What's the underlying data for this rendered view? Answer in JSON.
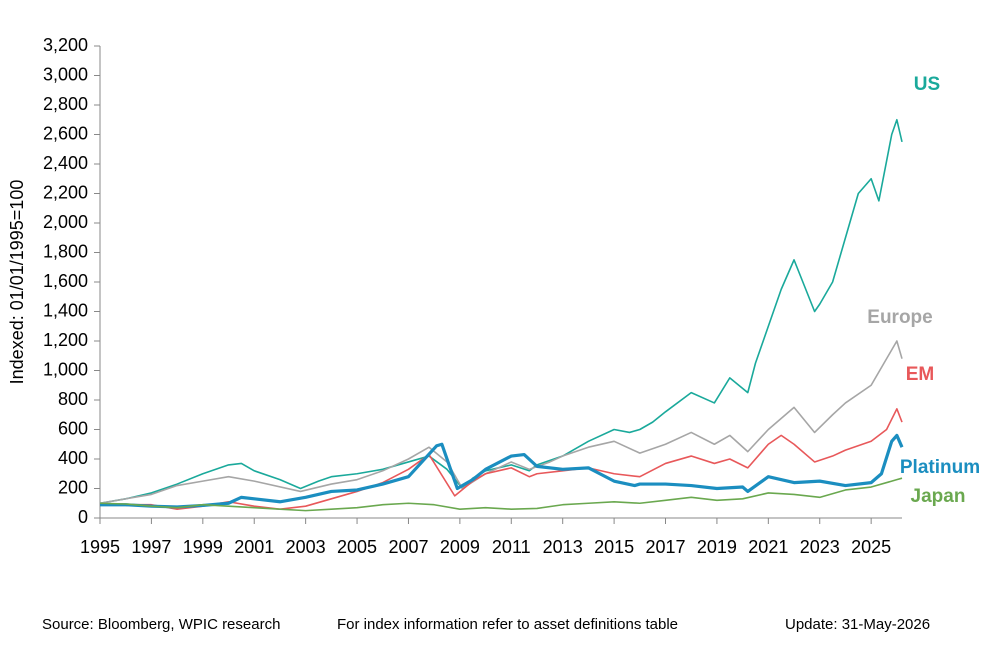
{
  "chart_data": {
    "type": "line",
    "y_label": "Indexed: 01/01/1995=100",
    "source": "Source: Bloomberg, WPIC research",
    "note": "For index information refer to asset definitions table",
    "update": "Update: 31-May-2026",
    "xlim": [
      1995,
      2026.2
    ],
    "xticks": [
      1995,
      1997,
      1999,
      2001,
      2003,
      2005,
      2007,
      2009,
      2011,
      2013,
      2015,
      2017,
      2019,
      2021,
      2023,
      2025
    ],
    "ylim": [
      0,
      3200
    ],
    "yticks": [
      0,
      200,
      400,
      600,
      800,
      {
        "value": 1000,
        "label": "1,000"
      },
      {
        "value": 1200,
        "label": "1,200"
      },
      {
        "value": 1400,
        "label": "1,400"
      },
      {
        "value": 1600,
        "label": "1,600"
      },
      {
        "value": 1800,
        "label": "1,800"
      },
      {
        "value": 2000,
        "label": "2,000"
      },
      {
        "value": 2200,
        "label": "2,200"
      },
      {
        "value": 2400,
        "label": "2,400"
      },
      {
        "value": 2600,
        "label": "2,600"
      },
      {
        "value": 2800,
        "label": "2,800"
      },
      {
        "value": 3000,
        "label": "3,000"
      },
      {
        "value": 3200,
        "label": "3,200"
      }
    ],
    "grid": false,
    "series": [
      {
        "name": "US",
        "color": "#1aa99b",
        "line_width": 1.6,
        "x": [
          1995,
          1996,
          1997,
          1998,
          1999,
          2000,
          2000.5,
          2001,
          2002,
          2002.8,
          2003.5,
          2004,
          2005,
          2006,
          2007,
          2007.8,
          2008.5,
          2009.1,
          2009.5,
          2010,
          2011,
          2011.7,
          2012,
          2013,
          2014,
          2015,
          2015.6,
          2016,
          2016.5,
          2017,
          2018,
          2018.9,
          2019.5,
          2020.2,
          2020.5,
          2021,
          2021.5,
          2022,
          2022.8,
          2023,
          2023.5,
          2024,
          2024.5,
          2025,
          2025.3,
          2025.8,
          2026.0,
          2026.2
        ],
        "values": [
          100,
          130,
          170,
          230,
          300,
          360,
          370,
          320,
          260,
          200,
          250,
          280,
          300,
          330,
          380,
          420,
          330,
          200,
          270,
          320,
          360,
          320,
          360,
          420,
          520,
          600,
          580,
          600,
          650,
          720,
          850,
          780,
          950,
          850,
          1050,
          1300,
          1550,
          1750,
          1400,
          1450,
          1600,
          1900,
          2200,
          2300,
          2150,
          2600,
          2700,
          2550
        ]
      },
      {
        "name": "Europe",
        "color": "#a6a6a6",
        "line_width": 1.6,
        "x": [
          1995,
          1997,
          1998,
          1999,
          2000,
          2001,
          2002.8,
          2004,
          2005,
          2006,
          2007,
          2007.8,
          2008.5,
          2009.1,
          2010,
          2011,
          2011.7,
          2012.5,
          2013,
          2014,
          2015,
          2016,
          2017,
          2018,
          2018.9,
          2019.5,
          2020.2,
          2021,
          2022,
          2022.8,
          2023.5,
          2024,
          2025,
          2025.5,
          2026.0,
          2026.2
        ],
        "values": [
          100,
          160,
          220,
          250,
          280,
          250,
          180,
          230,
          260,
          320,
          400,
          480,
          380,
          200,
          300,
          380,
          330,
          380,
          420,
          480,
          520,
          440,
          500,
          580,
          500,
          560,
          450,
          600,
          750,
          580,
          700,
          780,
          900,
          1050,
          1200,
          1080
        ]
      },
      {
        "name": "EM",
        "color": "#e8585a",
        "line_width": 1.6,
        "x": [
          1995,
          1997,
          1998,
          1999,
          2000,
          2001,
          2002,
          2003,
          2004,
          2005,
          2006,
          2007,
          2007.8,
          2008.8,
          2009.5,
          2010,
          2011,
          2011.7,
          2012,
          2013,
          2014,
          2015,
          2016,
          2017,
          2018,
          2018.9,
          2019.5,
          2020.2,
          2021,
          2021.5,
          2022,
          2022.8,
          2023.5,
          2024,
          2025,
          2025.6,
          2026.0,
          2026.2
        ],
        "values": [
          90,
          90,
          60,
          80,
          110,
          80,
          60,
          80,
          130,
          180,
          240,
          330,
          430,
          150,
          250,
          300,
          340,
          280,
          300,
          320,
          340,
          300,
          280,
          370,
          420,
          370,
          400,
          340,
          500,
          560,
          500,
          380,
          420,
          460,
          520,
          600,
          740,
          650
        ]
      },
      {
        "name": "Platinum",
        "color": "#1b8ec0",
        "line_width": 3.2,
        "x": [
          1995,
          1996,
          1997,
          1998,
          1999,
          2000,
          2000.5,
          2001,
          2002,
          2003,
          2004,
          2005,
          2006,
          2007,
          2008.1,
          2008.3,
          2008.9,
          2009.5,
          2010,
          2011,
          2011.5,
          2012,
          2013,
          2014,
          2015,
          2015.8,
          2016,
          2017,
          2018,
          2019,
          2020,
          2020.2,
          2021,
          2022,
          2023,
          2024,
          2025,
          2025.4,
          2025.8,
          2026.0,
          2026.2
        ],
        "values": [
          90,
          90,
          80,
          75,
          85,
          100,
          140,
          130,
          110,
          140,
          180,
          190,
          230,
          280,
          490,
          500,
          200,
          260,
          330,
          420,
          430,
          350,
          330,
          340,
          250,
          220,
          230,
          230,
          220,
          200,
          210,
          180,
          280,
          240,
          250,
          220,
          240,
          300,
          520,
          560,
          480
        ]
      },
      {
        "name": "Japan",
        "color": "#6aa84f",
        "line_width": 1.6,
        "x": [
          1995,
          1996,
          1997,
          1998,
          1999,
          2000,
          2001,
          2002,
          2003,
          2004,
          2005,
          2006,
          2007,
          2008,
          2009,
          2010,
          2011,
          2012,
          2013,
          2014,
          2015,
          2016,
          2017,
          2018,
          2019,
          2020,
          2021,
          2022,
          2023,
          2024,
          2025,
          2026,
          2026.2
        ],
        "values": [
          100,
          95,
          80,
          70,
          90,
          80,
          70,
          60,
          50,
          60,
          70,
          90,
          100,
          90,
          60,
          70,
          60,
          65,
          90,
          100,
          110,
          100,
          120,
          140,
          120,
          130,
          170,
          160,
          140,
          190,
          210,
          260,
          270
        ]
      }
    ]
  }
}
